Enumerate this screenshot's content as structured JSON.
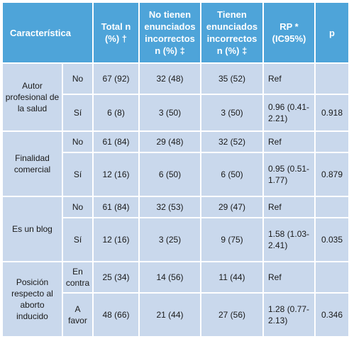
{
  "headers": {
    "characteristic": "Característica",
    "total": "Total n (%) †",
    "no_incorrect": "No tienen enunciados incorrectos n (%) ‡",
    "incorrect": "Tienen enunciados incorrectos n (%) ‡",
    "rp": "RP * (IC95%)",
    "p": "p"
  },
  "groups": [
    {
      "characteristic": "Autor profesional de la salud",
      "p": "0.918",
      "rows": [
        {
          "category": "No",
          "total": "67 (92)",
          "no_incorrect": "32 (48)",
          "incorrect": "35 (52)",
          "rp": "Ref"
        },
        {
          "category": "Sí",
          "total": "6 (8)",
          "no_incorrect": "3 (50)",
          "incorrect": "3 (50)",
          "rp": "0.96 (0.41-2.21)"
        }
      ]
    },
    {
      "characteristic": "Finalidad comercial",
      "p": "0.879",
      "rows": [
        {
          "category": "No",
          "total": "61 (84)",
          "no_incorrect": "29 (48)",
          "incorrect": "32 (52)",
          "rp": "Ref"
        },
        {
          "category": "Sí",
          "total": "12 (16)",
          "no_incorrect": "6 (50)",
          "incorrect": "6 (50)",
          "rp": "0.95 (0.51-1.77)"
        }
      ]
    },
    {
      "characteristic": "Es un blog",
      "p": "0.035",
      "rows": [
        {
          "category": "No",
          "total": "61 (84)",
          "no_incorrect": "32 (53)",
          "incorrect": "29 (47)",
          "rp": "Ref"
        },
        {
          "category": "Sí",
          "total": "12 (16)",
          "no_incorrect": "3 (25)",
          "incorrect": "9 (75)",
          "rp": "1.58 (1.03-2.41)"
        }
      ]
    },
    {
      "characteristic": "Posición respecto al aborto inducido",
      "p": "0.346",
      "rows": [
        {
          "category": "En contra",
          "total": "25 (34)",
          "no_incorrect": "14 (56)",
          "incorrect": "11 (44)",
          "rp": "Ref"
        },
        {
          "category": "A favor",
          "total": "48 (66)",
          "no_incorrect": "21 (44)",
          "incorrect": "27 (56)",
          "rp": "1.28 (0.77-2.13)"
        }
      ]
    }
  ]
}
